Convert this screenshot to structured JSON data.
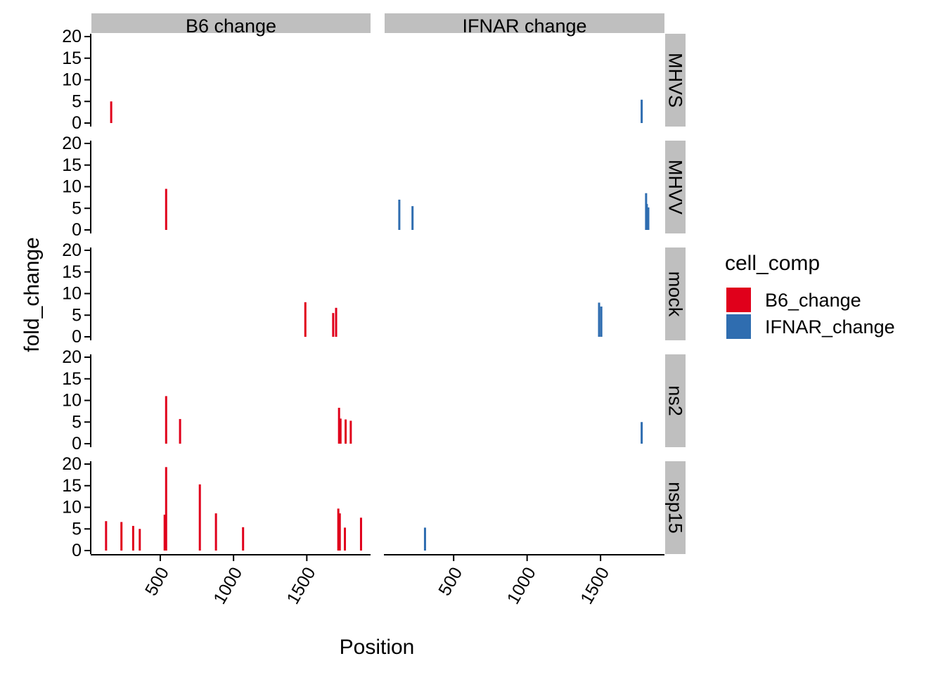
{
  "chart_data": {
    "type": "bar",
    "xlabel": "Position",
    "ylabel": "fold_change",
    "xlim": [
      30,
      1935
    ],
    "ylim": [
      0,
      20
    ],
    "x_ticks": [
      "500",
      "1000",
      "1500"
    ],
    "y_ticks": [
      "0",
      "5",
      "10",
      "15",
      "20"
    ],
    "column_facets": [
      "B6_change",
      "IFNAR_change"
    ],
    "row_facets": [
      "MHVS",
      "MHVV",
      "mock",
      "ns2",
      "nsp15"
    ],
    "legend": {
      "title": "cell_comp",
      "position": "right",
      "entries": [
        {
          "label": "B6_change",
          "color": "#e0001b"
        },
        {
          "label": "IFNAR_change",
          "color": "#2f6db0"
        }
      ]
    },
    "grid": false,
    "panels": {
      "B6_change": {
        "MHVS": [
          {
            "x": 165,
            "y": 5.0
          }
        ],
        "MHVV": [
          {
            "x": 540,
            "y": 9.5
          }
        ],
        "mock": [
          {
            "x": 1490,
            "y": 8.0
          },
          {
            "x": 1680,
            "y": 5.5
          },
          {
            "x": 1700,
            "y": 6.7
          }
        ],
        "ns2": [
          {
            "x": 540,
            "y": 11.0
          },
          {
            "x": 635,
            "y": 5.7
          },
          {
            "x": 1720,
            "y": 8.3
          },
          {
            "x": 1730,
            "y": 5.8
          },
          {
            "x": 1765,
            "y": 5.6
          },
          {
            "x": 1800,
            "y": 5.3
          }
        ],
        "nsp15": [
          {
            "x": 130,
            "y": 6.8
          },
          {
            "x": 235,
            "y": 6.6
          },
          {
            "x": 315,
            "y": 5.7
          },
          {
            "x": 360,
            "y": 5.0
          },
          {
            "x": 530,
            "y": 8.3
          },
          {
            "x": 540,
            "y": 19.3
          },
          {
            "x": 770,
            "y": 15.3
          },
          {
            "x": 880,
            "y": 8.6
          },
          {
            "x": 1065,
            "y": 5.4
          },
          {
            "x": 1715,
            "y": 9.7
          },
          {
            "x": 1725,
            "y": 8.6
          },
          {
            "x": 1760,
            "y": 5.3
          },
          {
            "x": 1870,
            "y": 7.6
          }
        ]
      },
      "IFNAR_change": {
        "MHVS": [
          {
            "x": 1780,
            "y": 5.4
          }
        ],
        "MHVV": [
          {
            "x": 130,
            "y": 7.0
          },
          {
            "x": 220,
            "y": 5.5
          },
          {
            "x": 1810,
            "y": 8.5
          },
          {
            "x": 1815,
            "y": 6.0
          },
          {
            "x": 1825,
            "y": 5.2
          }
        ],
        "mock": [
          {
            "x": 1490,
            "y": 7.9
          },
          {
            "x": 1505,
            "y": 7.0
          }
        ],
        "ns2": [
          {
            "x": 1780,
            "y": 5.0
          }
        ],
        "nsp15": [
          {
            "x": 305,
            "y": 5.3
          }
        ]
      }
    }
  }
}
